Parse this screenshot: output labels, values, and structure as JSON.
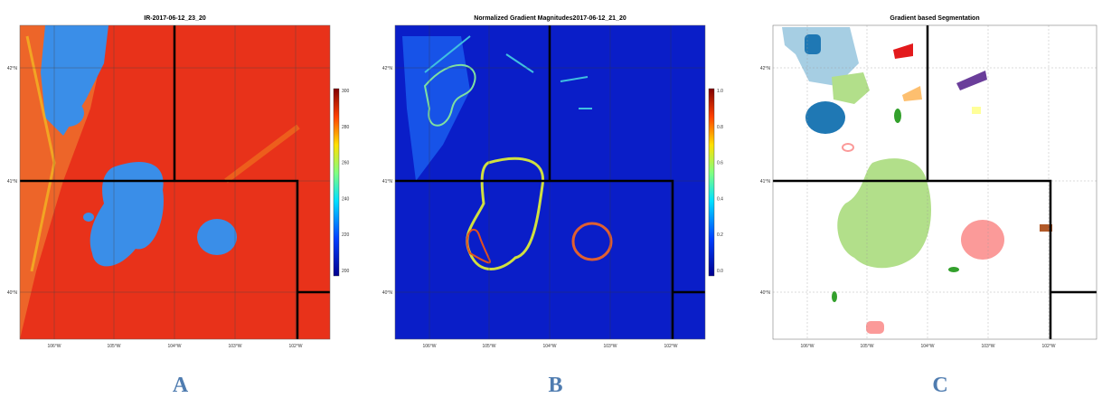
{
  "panels": [
    {
      "title": "IR-2017-06-12_23_20",
      "label": "A",
      "yticks": [
        "42°N",
        "41°N",
        "40°N"
      ],
      "xticks": [
        "106°W",
        "105°W",
        "104°W",
        "103°W",
        "102°W"
      ],
      "colorbar": [
        "300",
        "280",
        "260",
        "240",
        "220",
        "200"
      ]
    },
    {
      "title": "Normalized Gradient Magnitudes2017-06-12_21_20",
      "label": "B",
      "yticks": [
        "42°N",
        "41°N",
        "40°N"
      ],
      "xticks": [
        "106°W",
        "105°W",
        "104°W",
        "103°W",
        "102°W"
      ],
      "colorbar": [
        "1.0",
        "0.8",
        "0.6",
        "0.4",
        "0.2",
        "0.0"
      ]
    },
    {
      "title": "Gradient based Segmentation",
      "label": "C",
      "yticks": [
        "42°N",
        "41°N",
        "40°N"
      ],
      "xticks": [
        "106°W",
        "105°W",
        "104°W",
        "103°W",
        "102°W"
      ]
    }
  ]
}
